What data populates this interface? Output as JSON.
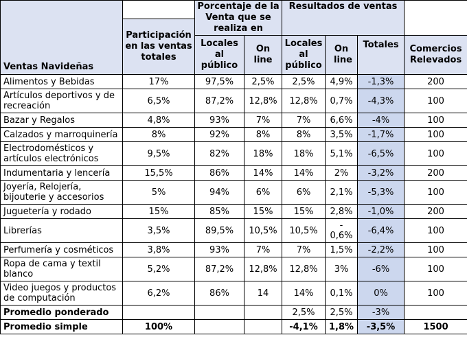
{
  "table": {
    "corner_header": "Ventas Navideñas",
    "group_headers": {
      "porcentaje": "Porcentaje de la Venta que se realiza en",
      "resultados": "Resultados de ventas"
    },
    "column_headers": {
      "participacion": "Participación en las ventas totales",
      "pv_locales": "Locales al público",
      "pv_online": "On line",
      "rv_locales": "Locales al público",
      "rv_online": "On line",
      "totales": "Totales",
      "comercios": "Comercios Relevados"
    },
    "colors": {
      "header_bg": "#dce2f2",
      "totales_bg": "#ccd7ee",
      "border": "#000000"
    },
    "rows": [
      {
        "label": "Alimentos y Bebidas",
        "cells": [
          "17%",
          "97,5%",
          "2,5%",
          "2,5%",
          "4,9%",
          "-1,3%",
          "200"
        ]
      },
      {
        "label": "Artículos deportivos y de recreación",
        "cells": [
          "6,5%",
          "87,2%",
          "12,8%",
          "12,8%",
          "0,7%",
          "-4,3%",
          "100"
        ]
      },
      {
        "label": "Bazar y Regalos",
        "cells": [
          "4,8%",
          "93%",
          "7%",
          "7%",
          "6,6%",
          "-4%",
          "100"
        ]
      },
      {
        "label": "Calzados y marroquinería",
        "cells": [
          "8%",
          "92%",
          "8%",
          "8%",
          "3,5%",
          "-1,7%",
          "100"
        ]
      },
      {
        "label": "Electrodomésticos y artículos electrónicos",
        "cells": [
          "9,5%",
          "82%",
          "18%",
          "18%",
          "5,1%",
          "-6,5%",
          "100"
        ]
      },
      {
        "label": "Indumentaria y lencería",
        "cells": [
          "15,5%",
          "86%",
          "14%",
          "14%",
          "2%",
          "-3,2%",
          "200"
        ]
      },
      {
        "label": "Joyería, Relojería, bijouterie y accesorios",
        "cells": [
          "5%",
          "94%",
          "6%",
          "6%",
          "2,1%",
          "-5,3%",
          "100"
        ]
      },
      {
        "label": "Juguetería y rodado",
        "cells": [
          "15%",
          "85%",
          "15%",
          "15%",
          "2,8%",
          "-1,0%",
          "200"
        ]
      },
      {
        "label": "Librerías",
        "cells": [
          "3,5%",
          "89,5%",
          "10,5%",
          "10,5%",
          "-\n0,6%",
          "-6,4%",
          "100"
        ]
      },
      {
        "label": "Perfumería y cosméticos",
        "cells": [
          "3,8%",
          "93%",
          "7%",
          "7%",
          "1,5%",
          "-2,2%",
          "100"
        ]
      },
      {
        "label": "Ropa de cama y textil blanco",
        "cells": [
          "5,2%",
          "87,2%",
          "12,8%",
          "12,8%",
          "3%",
          "-6%",
          "100"
        ]
      },
      {
        "label": "Video juegos y productos de computación",
        "cells": [
          "6,2%",
          "86%",
          "14",
          "14%",
          "0,1%",
          "0%",
          "100"
        ]
      },
      {
        "label": "Promedio ponderado",
        "label_bold": true,
        "cells": [
          "",
          "",
          "",
          "2,5%",
          "2,5%",
          "-3%",
          ""
        ]
      },
      {
        "label": "Promedio simple",
        "label_bold": true,
        "cells_bold": true,
        "cells": [
          "100%",
          "",
          "",
          "-4,1%",
          "1,8%",
          "-3,5%",
          "1500"
        ]
      }
    ]
  }
}
